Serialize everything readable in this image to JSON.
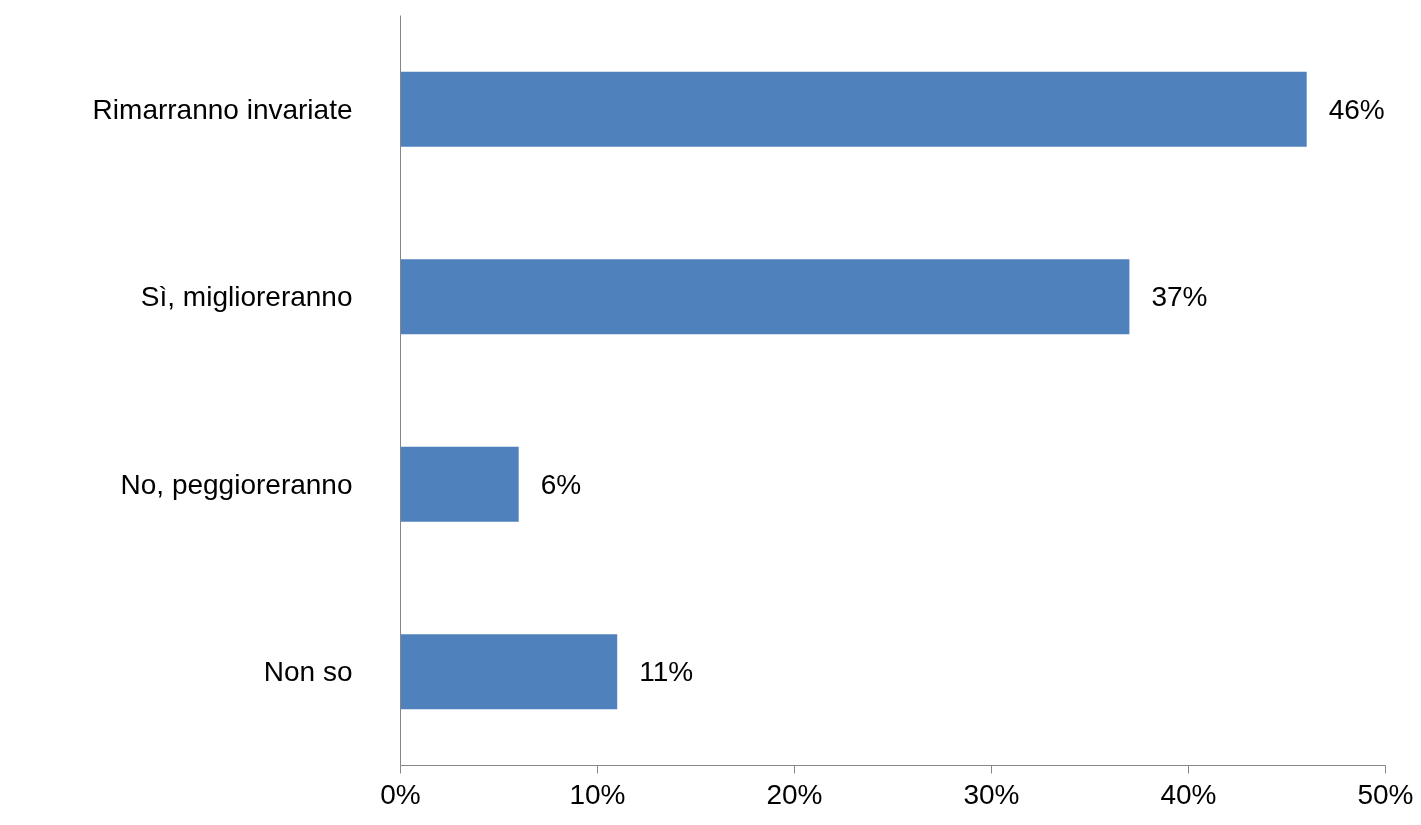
{
  "chart_data": {
    "type": "bar",
    "orientation": "horizontal",
    "categories": [
      "Rimarranno invariate",
      "Sì, miglioreranno",
      "No, peggioreranno",
      "Non so"
    ],
    "values": [
      46,
      37,
      6,
      11
    ],
    "value_labels": [
      "46%",
      "37%",
      "6%",
      "11%"
    ],
    "color": "#4f81bd",
    "xlim": [
      0,
      50
    ],
    "xticks": [
      {
        "value": 0,
        "label": "0%"
      },
      {
        "value": 10,
        "label": "10%"
      },
      {
        "value": 20,
        "label": "20%"
      },
      {
        "value": 30,
        "label": "30%"
      },
      {
        "value": 40,
        "label": "40%"
      },
      {
        "value": 50,
        "label": "50%"
      }
    ],
    "grid": false
  }
}
